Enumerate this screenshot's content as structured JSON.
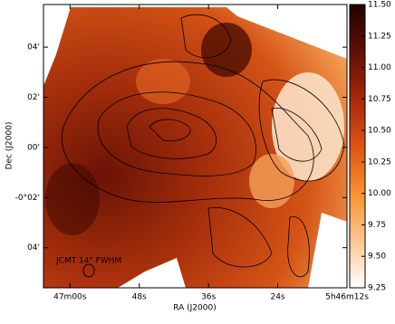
{
  "chart_data": {
    "type": "image",
    "xlabel": "RA (J2000)",
    "ylabel": "Dec (J2000)",
    "annotation": "JCMT 14\" FWHM",
    "xlim": [
      64.6,
      12
    ],
    "xticks": [
      {
        "value": 60,
        "label": "47m00s"
      },
      {
        "value": 48,
        "label": "48s"
      },
      {
        "value": 36,
        "label": "36s"
      },
      {
        "value": 24,
        "label": "24s"
      },
      {
        "value": 12,
        "label": "5h46m12s"
      }
    ],
    "ylim": [
      -5.6,
      5.7
    ],
    "yticks": [
      {
        "value": 4,
        "label": "04'"
      },
      {
        "value": 2,
        "label": "02'"
      },
      {
        "value": 0,
        "label": "00'"
      },
      {
        "value": -2,
        "label": "-0°02'"
      },
      {
        "value": -4,
        "label": "04'"
      }
    ],
    "clim": [
      9.25,
      11.5
    ],
    "cticks": [
      {
        "value": 11.5,
        "label": "11.50"
      },
      {
        "value": 11.25,
        "label": "11.25"
      },
      {
        "value": 11,
        "label": "11.00"
      },
      {
        "value": 10.75,
        "label": "10.75"
      },
      {
        "value": 10.5,
        "label": "10.50"
      },
      {
        "value": 10.25,
        "label": "10.25"
      },
      {
        "value": 10,
        "label": "10.00"
      },
      {
        "value": 9.75,
        "label": "9.75"
      },
      {
        "value": 9.5,
        "label": "9.50"
      },
      {
        "value": 9.25,
        "label": "9.25"
      }
    ],
    "colormap": [
      "#ffffff",
      "#fcc690",
      "#f7922f",
      "#dd5414",
      "#a6280b",
      "#601004",
      "#1e0200"
    ]
  }
}
